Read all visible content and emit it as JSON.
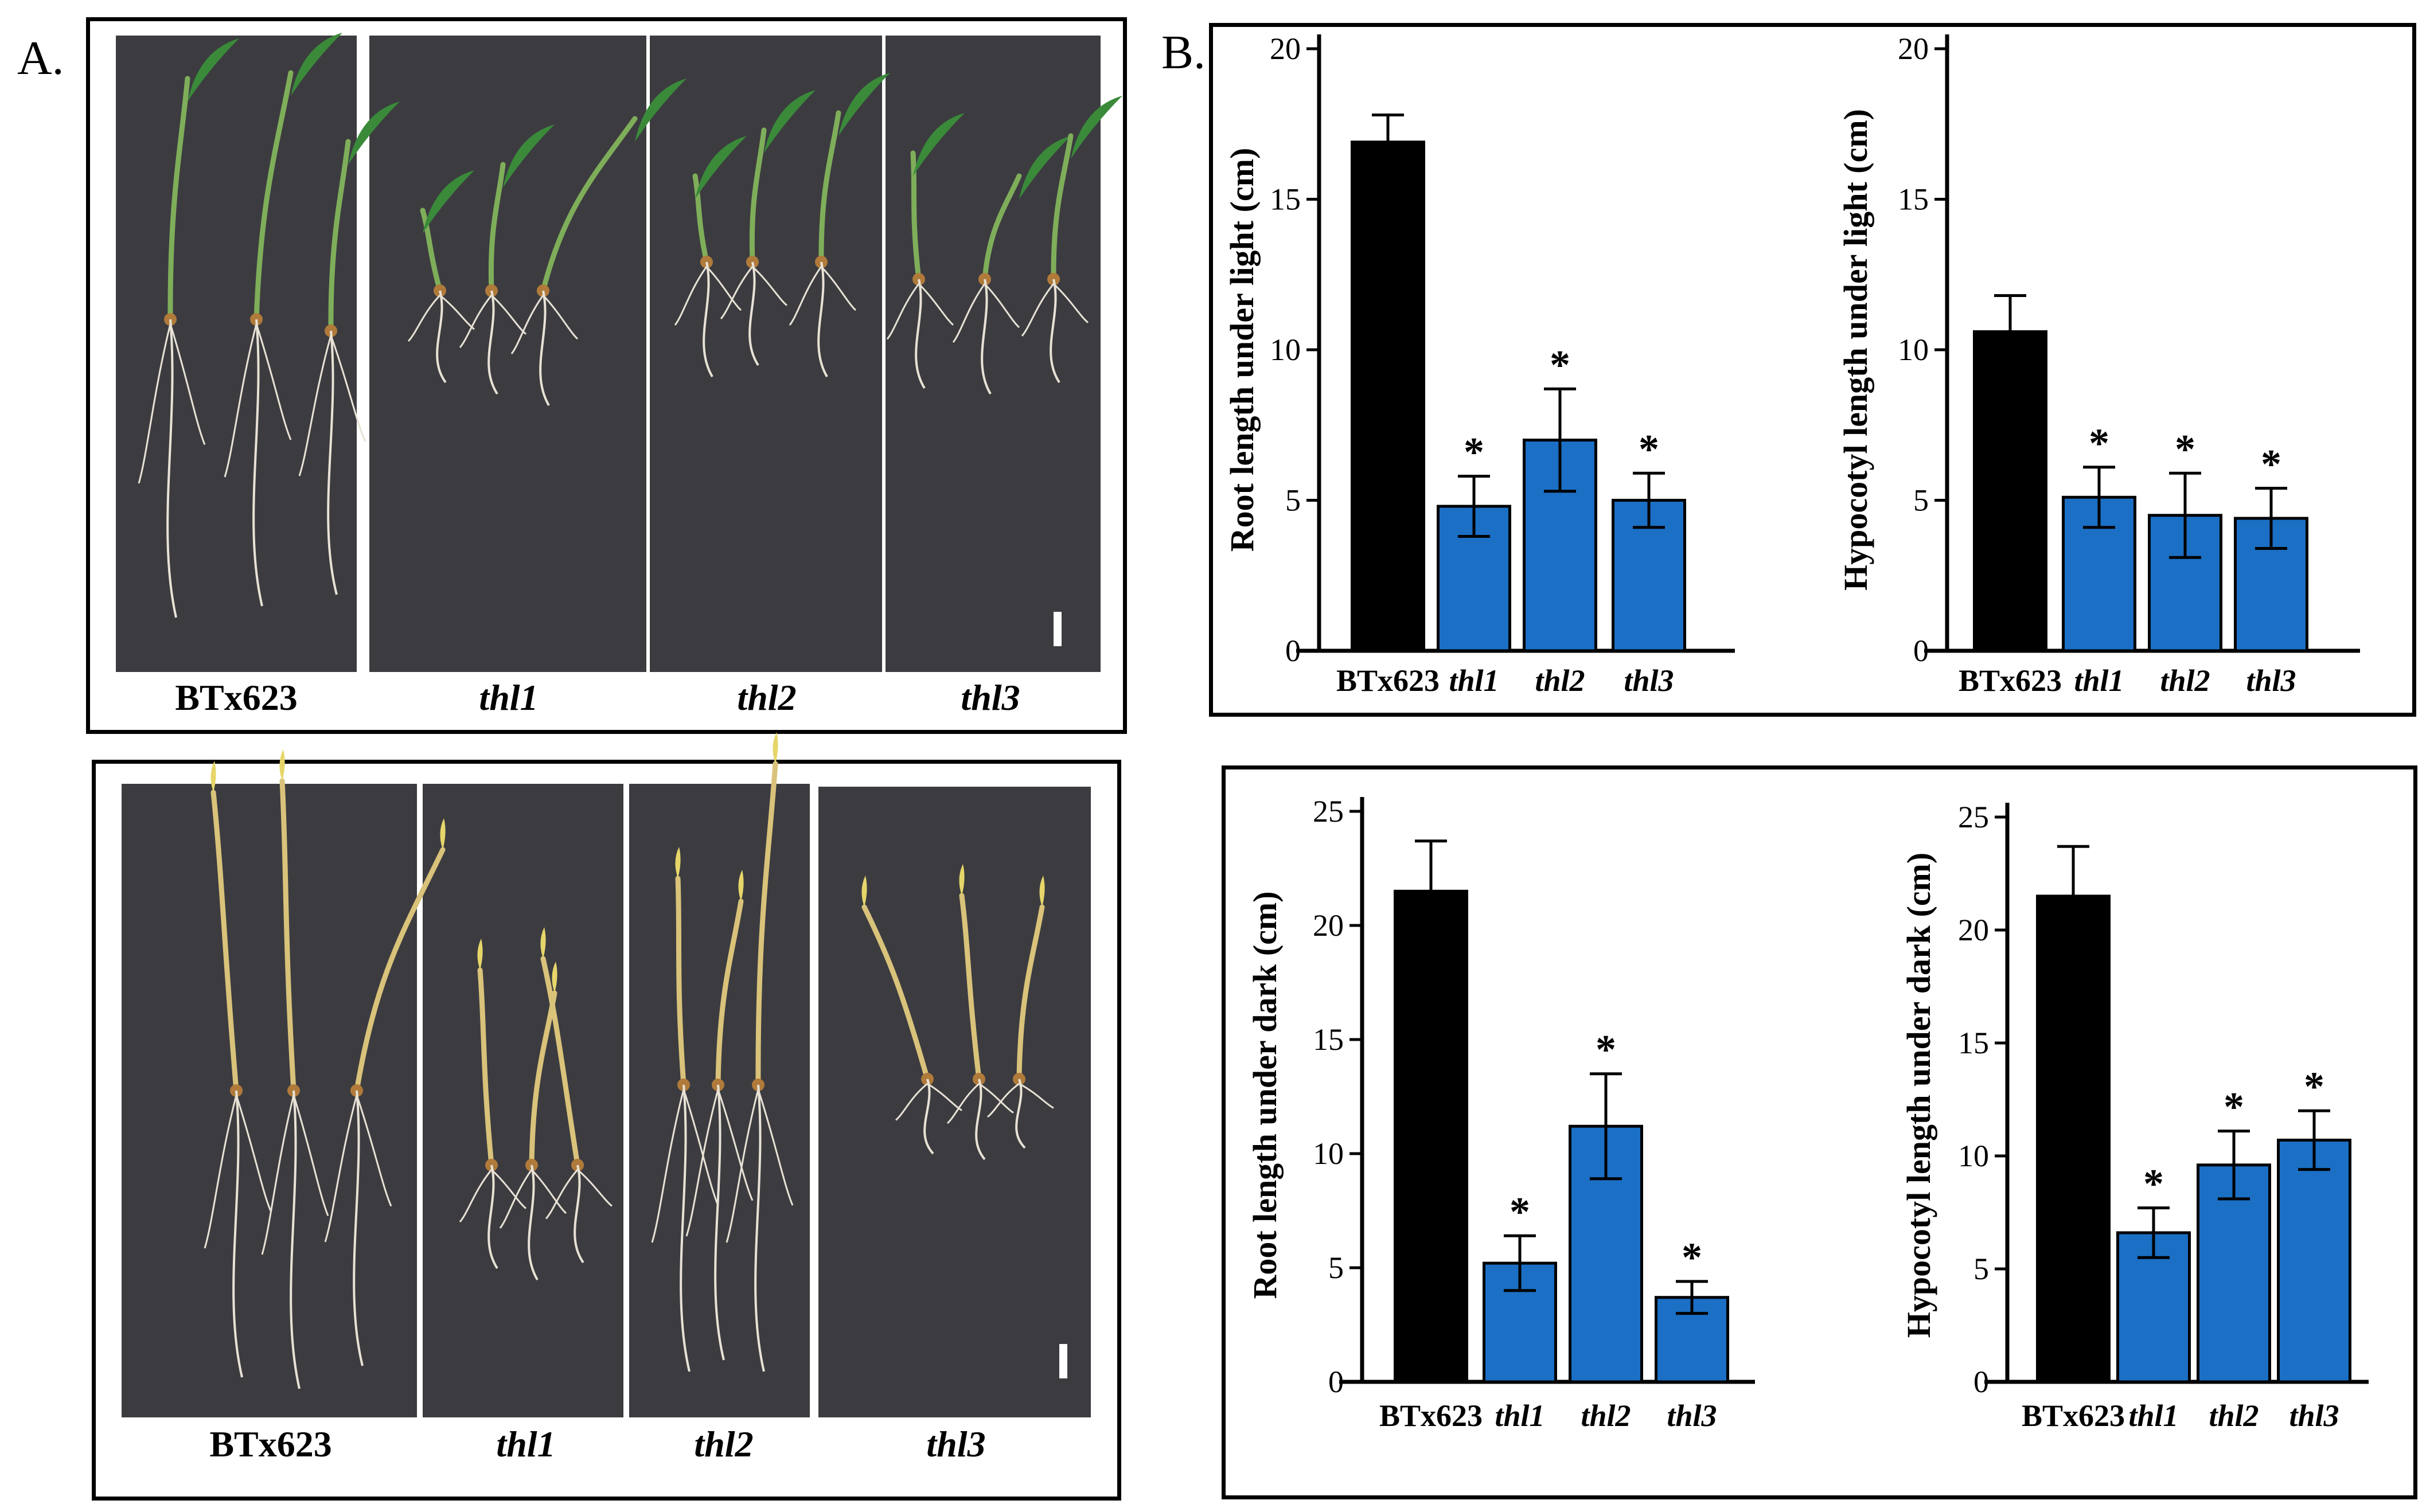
{
  "panel_a": {
    "label": "A.",
    "light_labels": [
      "BTx623",
      "thl1",
      "thl2",
      "thl3"
    ],
    "dark_labels": [
      "BTx623",
      "thl1",
      "thl2",
      "thl3"
    ]
  },
  "panel_b": {
    "label": "B."
  },
  "colors": {
    "wild_type": "#000000",
    "mutant": "#1b6fc4",
    "photo_bg": "#3c3c40",
    "seedling_leaf": "#3a8a3a",
    "seedling_stem_dark": "#d9c27a",
    "root": "#e8e2d6"
  },
  "chart_data": [
    {
      "type": "bar",
      "title": "",
      "ylabel": "Root length under light (cm)",
      "xlabel": "",
      "categories": [
        "BTx623",
        "thl1",
        "thl2",
        "thl3"
      ],
      "values": [
        16.9,
        4.8,
        7.0,
        5.0
      ],
      "errors": [
        0.9,
        1.0,
        1.7,
        0.9
      ],
      "significance": [
        "",
        "*",
        "*",
        "*"
      ],
      "ylim": [
        0,
        20
      ],
      "yticks": [
        "0",
        "5",
        "10",
        "15",
        "20"
      ]
    },
    {
      "type": "bar",
      "title": "",
      "ylabel": "Hypocotyl length under light (cm)",
      "xlabel": "",
      "categories": [
        "BTx623",
        "thl1",
        "thl2",
        "thl3"
      ],
      "values": [
        10.6,
        5.1,
        4.5,
        4.4
      ],
      "errors": [
        1.2,
        1.0,
        1.4,
        1.0
      ],
      "significance": [
        "",
        "*",
        "*",
        "*"
      ],
      "ylim": [
        0,
        20
      ],
      "yticks": [
        "0",
        "5",
        "10",
        "15",
        "20"
      ]
    },
    {
      "type": "bar",
      "title": "",
      "ylabel": "Root length under dark (cm)",
      "xlabel": "",
      "categories": [
        "BTx623",
        "thl1",
        "thl2",
        "thl3"
      ],
      "values": [
        21.5,
        5.2,
        11.2,
        3.7
      ],
      "errors": [
        2.2,
        1.2,
        2.3,
        0.7
      ],
      "significance": [
        "",
        "*",
        "*",
        "*"
      ],
      "ylim": [
        0,
        25
      ],
      "yticks": [
        "0",
        "5",
        "10",
        "15",
        "20",
        "25"
      ]
    },
    {
      "type": "bar",
      "title": "",
      "ylabel": "Hypocotyl length under dark (cm)",
      "xlabel": "",
      "categories": [
        "BTx623",
        "thl1",
        "thl2",
        "thl3"
      ],
      "values": [
        21.5,
        6.6,
        9.6,
        10.7
      ],
      "errors": [
        2.2,
        1.1,
        1.5,
        1.3
      ],
      "significance": [
        "",
        "*",
        "*",
        "*"
      ],
      "ylim": [
        0,
        25
      ],
      "yticks": [
        "0",
        "5",
        "10",
        "15",
        "20",
        "25"
      ]
    }
  ]
}
